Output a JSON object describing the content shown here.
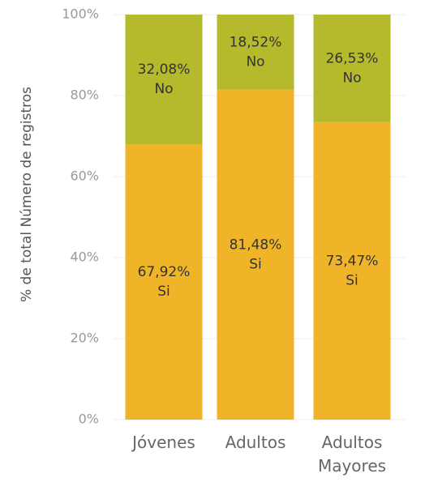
{
  "chart_data": {
    "type": "stacked-bar",
    "y_label": "% de total Número de registros",
    "categories": [
      "Jóvenes",
      "Adultos",
      "Adultos Mayores"
    ],
    "series": [
      {
        "name": "Si",
        "color": "#f0b429",
        "values": [
          67.92,
          81.48,
          73.47
        ],
        "value_labels": [
          "67,92%",
          "81,48%",
          "73,47%"
        ]
      },
      {
        "name": "No",
        "color": "#b5b92c",
        "values": [
          32.08,
          18.52,
          26.53
        ],
        "value_labels": [
          "32,08%",
          "18,52%",
          "26,53%"
        ]
      }
    ],
    "ylim": [
      0,
      100
    ],
    "yticks": [
      {
        "value": 0,
        "label": "0%"
      },
      {
        "value": 20,
        "label": "20%"
      },
      {
        "value": 40,
        "label": "40%"
      },
      {
        "value": 60,
        "label": "60%"
      },
      {
        "value": 80,
        "label": "80%"
      },
      {
        "value": 100,
        "label": "100%"
      }
    ],
    "grid": true
  }
}
